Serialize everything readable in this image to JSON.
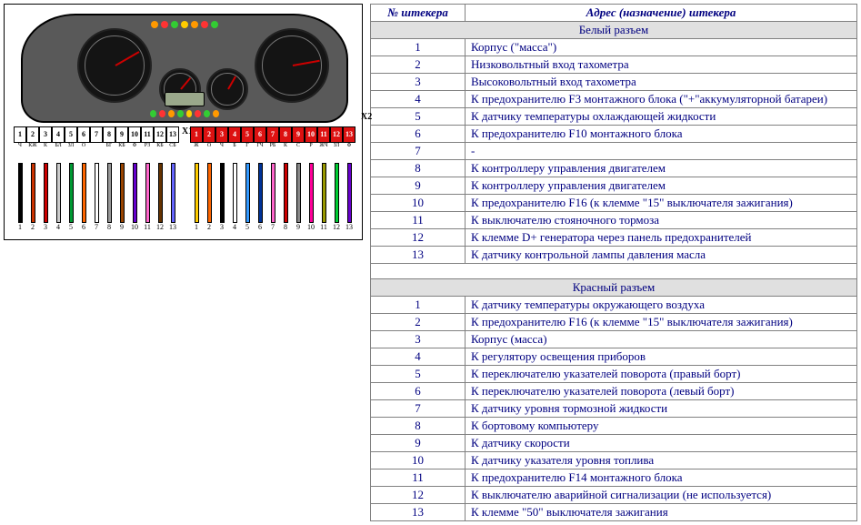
{
  "colors": {
    "text": "#000080",
    "section_bg": "#e0e0e0",
    "border": "#808080",
    "panel_bg": "#595959",
    "gauge_bg": "#141414",
    "needle": "#c00"
  },
  "indicator_colors_top": [
    "#ff9900",
    "#ff3333",
    "#33cc33",
    "#ffcc00",
    "#ff9900",
    "#ff3333",
    "#33cc33"
  ],
  "indicator_colors_bot": [
    "#33cc33",
    "#ff3333",
    "#ff9900",
    "#33cc33",
    "#ffcc00",
    "#ff3333",
    "#33cc33",
    "#ff9900"
  ],
  "table": {
    "header": {
      "pin": "№ штекера",
      "desc": "Адрес (назначение) штекера"
    },
    "sections": [
      {
        "title": "Белый разъем",
        "rows": [
          {
            "n": "1",
            "d": "Корпус (\"масса\")"
          },
          {
            "n": "2",
            "d": "Низковольтный вход тахометра"
          },
          {
            "n": "3",
            "d": "Высоковольтный вход тахометра"
          },
          {
            "n": "4",
            "d": "К предохранителю F3 монтажного блока (\"+\"аккумуляторной батареи)"
          },
          {
            "n": "5",
            "d": "К датчику температуры охлаждающей жидкости"
          },
          {
            "n": "6",
            "d": "К предохранителю F10 монтажного блока"
          },
          {
            "n": "7",
            "d": "-"
          },
          {
            "n": "8",
            "d": "К контроллеру управления двигателем"
          },
          {
            "n": "9",
            "d": "К контроллеру управления двигателем"
          },
          {
            "n": "10",
            "d": "К предохранителю F16 (к клемме \"15\" выключателя зажигания)"
          },
          {
            "n": "11",
            "d": "К выключателю стояночного тормоза"
          },
          {
            "n": "12",
            "d": "К клемме D+ генератора через панель предохранителей"
          },
          {
            "n": "13",
            "d": "К датчику контрольной лампы давления масла"
          }
        ]
      },
      {
        "title": "Красный разъем",
        "rows": [
          {
            "n": "1",
            "d": "К датчику температуры окружающего воздуха"
          },
          {
            "n": "2",
            "d": "К предохранителю F16 (к клемме \"15\" выключателя зажигания)"
          },
          {
            "n": "3",
            "d": "Корпус (масса)"
          },
          {
            "n": "4",
            "d": "К регулятору освещения приборов"
          },
          {
            "n": "5",
            "d": "К переключателю указателей поворота (правый борт)"
          },
          {
            "n": "6",
            "d": "К переключателю указателей поворота (левый борт)"
          },
          {
            "n": "7",
            "d": "К датчику уровня тормозной жидкости"
          },
          {
            "n": "8",
            "d": "К бортовому компьютеру"
          },
          {
            "n": "9",
            "d": "К датчику скорости"
          },
          {
            "n": "10",
            "d": "К датчику указателя уровня топлива"
          },
          {
            "n": "11",
            "d": "К предохранителю F14 монтажного блока"
          },
          {
            "n": "12",
            "d": "К выключателю аварийной сигнализации (не используется)"
          },
          {
            "n": "13",
            "d": "К клемме \"50\" выключателя зажигания"
          }
        ]
      }
    ]
  },
  "connectors": {
    "x1": {
      "label": "X1",
      "pin_bg": "white",
      "pins": [
        "1",
        "2",
        "3",
        "4",
        "5",
        "6",
        "7",
        "8",
        "9",
        "10",
        "11",
        "12",
        "13"
      ],
      "wires": [
        {
          "lbl": "Ч",
          "color": "#000000",
          "num": "1"
        },
        {
          "lbl": "КЖ",
          "color": "#cc3300",
          "num": "2"
        },
        {
          "lbl": "К",
          "color": "#cc0000",
          "num": "3"
        },
        {
          "lbl": "БЛ",
          "color": "#cccccc",
          "num": "4"
        },
        {
          "lbl": "ЗЛ",
          "color": "#009933",
          "num": "5"
        },
        {
          "lbl": "О",
          "color": "#ff6600",
          "num": "6"
        },
        {
          "lbl": "",
          "color": "#ffffff",
          "num": "7"
        },
        {
          "lbl": "БГ",
          "color": "#999999",
          "num": "8"
        },
        {
          "lbl": "КБ",
          "color": "#994400",
          "num": "9"
        },
        {
          "lbl": "Ф",
          "color": "#6600cc",
          "num": "10"
        },
        {
          "lbl": "РЗ",
          "color": "#ff66cc",
          "num": "11"
        },
        {
          "lbl": "КБ",
          "color": "#663300",
          "num": "12"
        },
        {
          "lbl": "СБ",
          "color": "#6666ff",
          "num": "13"
        }
      ]
    },
    "x2": {
      "label": "X2",
      "pin_bg": "red",
      "pins": [
        "1",
        "2",
        "3",
        "4",
        "5",
        "6",
        "7",
        "8",
        "9",
        "10",
        "11",
        "12",
        "13"
      ],
      "wires": [
        {
          "lbl": "Ж",
          "color": "#ffcc00",
          "num": "1"
        },
        {
          "lbl": "О",
          "color": "#ff6600",
          "num": "2"
        },
        {
          "lbl": "Ч",
          "color": "#000000",
          "num": "3"
        },
        {
          "lbl": "Б",
          "color": "#ffffff",
          "num": "4"
        },
        {
          "lbl": "Г",
          "color": "#3399ff",
          "num": "5"
        },
        {
          "lbl": "ГЧ",
          "color": "#003399",
          "num": "6"
        },
        {
          "lbl": "РБ",
          "color": "#ff66cc",
          "num": "7"
        },
        {
          "lbl": "К",
          "color": "#cc0000",
          "num": "8"
        },
        {
          "lbl": "С",
          "color": "#888888",
          "num": "9"
        },
        {
          "lbl": "Р",
          "color": "#ff0099",
          "num": "10"
        },
        {
          "lbl": "ЖЧ",
          "color": "#999900",
          "num": "11"
        },
        {
          "lbl": "ЗЛ",
          "color": "#00cc33",
          "num": "12"
        },
        {
          "lbl": "Ф",
          "color": "#6600cc",
          "num": "13"
        }
      ]
    }
  }
}
